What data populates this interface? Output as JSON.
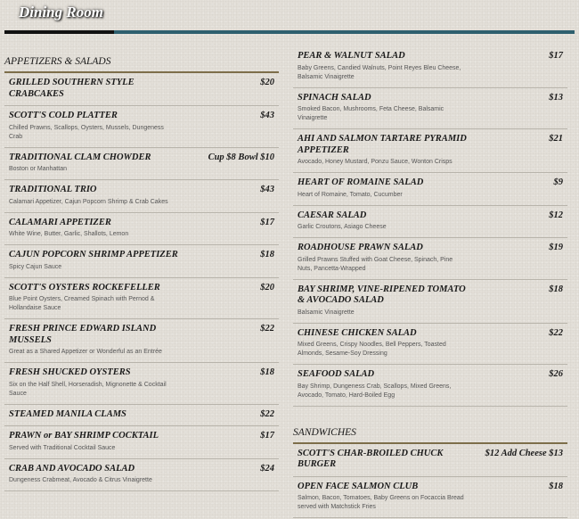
{
  "header": {
    "title": "Dining Room"
  },
  "colors": {
    "title_bar_dark": "#111111",
    "title_bar_teal": "#2e5f6e",
    "section_rule": "#7d6e4a"
  },
  "left": {
    "section": "APPETIZERS & SALADS",
    "items": [
      {
        "name": "GRILLED SOUTHERN STYLE CRABCAKES",
        "price": "$20",
        "desc": ""
      },
      {
        "name": "SCOTT'S COLD PLATTER",
        "price": "$43",
        "desc": "Chilled Prawns, Scallops, Oysters, Mussels, Dungeness Crab"
      },
      {
        "name": "TRADITIONAL CLAM CHOWDER",
        "price": "Cup $8 Bowl $10",
        "desc": "Boston or Manhattan"
      },
      {
        "name": "TRADITIONAL TRIO",
        "price": "$43",
        "desc": "Calamari Appetizer, Cajun Popcorn Shrimp & Crab Cakes"
      },
      {
        "name": "CALAMARI APPETIZER",
        "price": "$17",
        "desc": "White Wine, Butter, Garlic, Shallots, Lemon"
      },
      {
        "name": "CAJUN POPCORN SHRIMP APPETIZER",
        "price": "$18",
        "desc": "Spicy Cajun Sauce"
      },
      {
        "name": "SCOTT'S OYSTERS ROCKEFELLER",
        "price": "$20",
        "desc": "Blue Point Oysters, Creamed Spinach with Pernod & Hollandaise Sauce"
      },
      {
        "name": "FRESH PRINCE EDWARD ISLAND MUSSELS",
        "price": "$22",
        "desc": "Great as a Shared Appetizer or Wonderful as an Entrée"
      },
      {
        "name": "FRESH SHUCKED OYSTERS",
        "price": "$18",
        "desc": "Six on the Half Shell, Horseradish, Mignonette & Cocktail Sauce"
      },
      {
        "name": "STEAMED MANILA CLAMS",
        "price": "$22",
        "desc": ""
      },
      {
        "name": "PRAWN or BAY SHRIMP COCKTAIL",
        "price": "$17",
        "desc": "Served with Traditional Cocktail Sauce"
      },
      {
        "name": "CRAB AND AVOCADO SALAD",
        "price": "$24",
        "desc": "Dungeness Crabmeat, Avocado & Citrus Vinaigrette"
      }
    ]
  },
  "right": {
    "items": [
      {
        "name": "PEAR & WALNUT SALAD",
        "price": "$17",
        "desc": "Baby Greens, Candied Walnuts, Point Reyes Bleu Cheese, Balsamic Vinaigrette"
      },
      {
        "name": "SPINACH SALAD",
        "price": "$13",
        "desc": "Smoked Bacon, Mushrooms, Feta Cheese, Balsamic Vinaigrette"
      },
      {
        "name": "AHI AND SALMON TARTARE PYRAMID APPETIZER",
        "price": "$21",
        "desc": "Avocado, Honey Mustard, Ponzu Sauce, Wonton Crisps"
      },
      {
        "name": "HEART OF ROMAINE SALAD",
        "price": "$9",
        "desc": "Heart of Romaine, Tomato, Cucumber"
      },
      {
        "name": "CAESAR SALAD",
        "price": "$12",
        "desc": "Garlic Croutons, Asiago Cheese"
      },
      {
        "name": "ROADHOUSE PRAWN SALAD",
        "price": "$19",
        "desc": "Grilled Prawns Stuffed with Goat Cheese, Spinach, Pine Nuts, Pancetta-Wrapped"
      },
      {
        "name": "BAY SHRIMP, VINE-RIPENED TOMATO & AVOCADO SALAD",
        "price": "$18",
        "desc": "Balsamic Vinaigrette"
      },
      {
        "name": "CHINESE CHICKEN SALAD",
        "price": "$22",
        "desc": "Mixed Greens, Crispy Noodles, Bell Peppers, Toasted Almonds, Sesame-Soy Dressing"
      },
      {
        "name": "SEAFOOD SALAD",
        "price": "$26",
        "desc": "Bay Shrimp, Dungeness Crab, Scallops, Mixed Greens, Avocado, Tomato, Hard-Boiled Egg"
      }
    ],
    "section2": "SANDWICHES",
    "items2": [
      {
        "name": "SCOTT'S CHAR-BROILED CHUCK BURGER",
        "price": "$12 Add Cheese $13",
        "desc": ""
      },
      {
        "name": "OPEN FACE SALMON CLUB",
        "price": "$18",
        "desc": "Salmon, Bacon, Tomatoes, Baby Greens on Focaccia Bread served with Matchstick Fries"
      }
    ]
  }
}
